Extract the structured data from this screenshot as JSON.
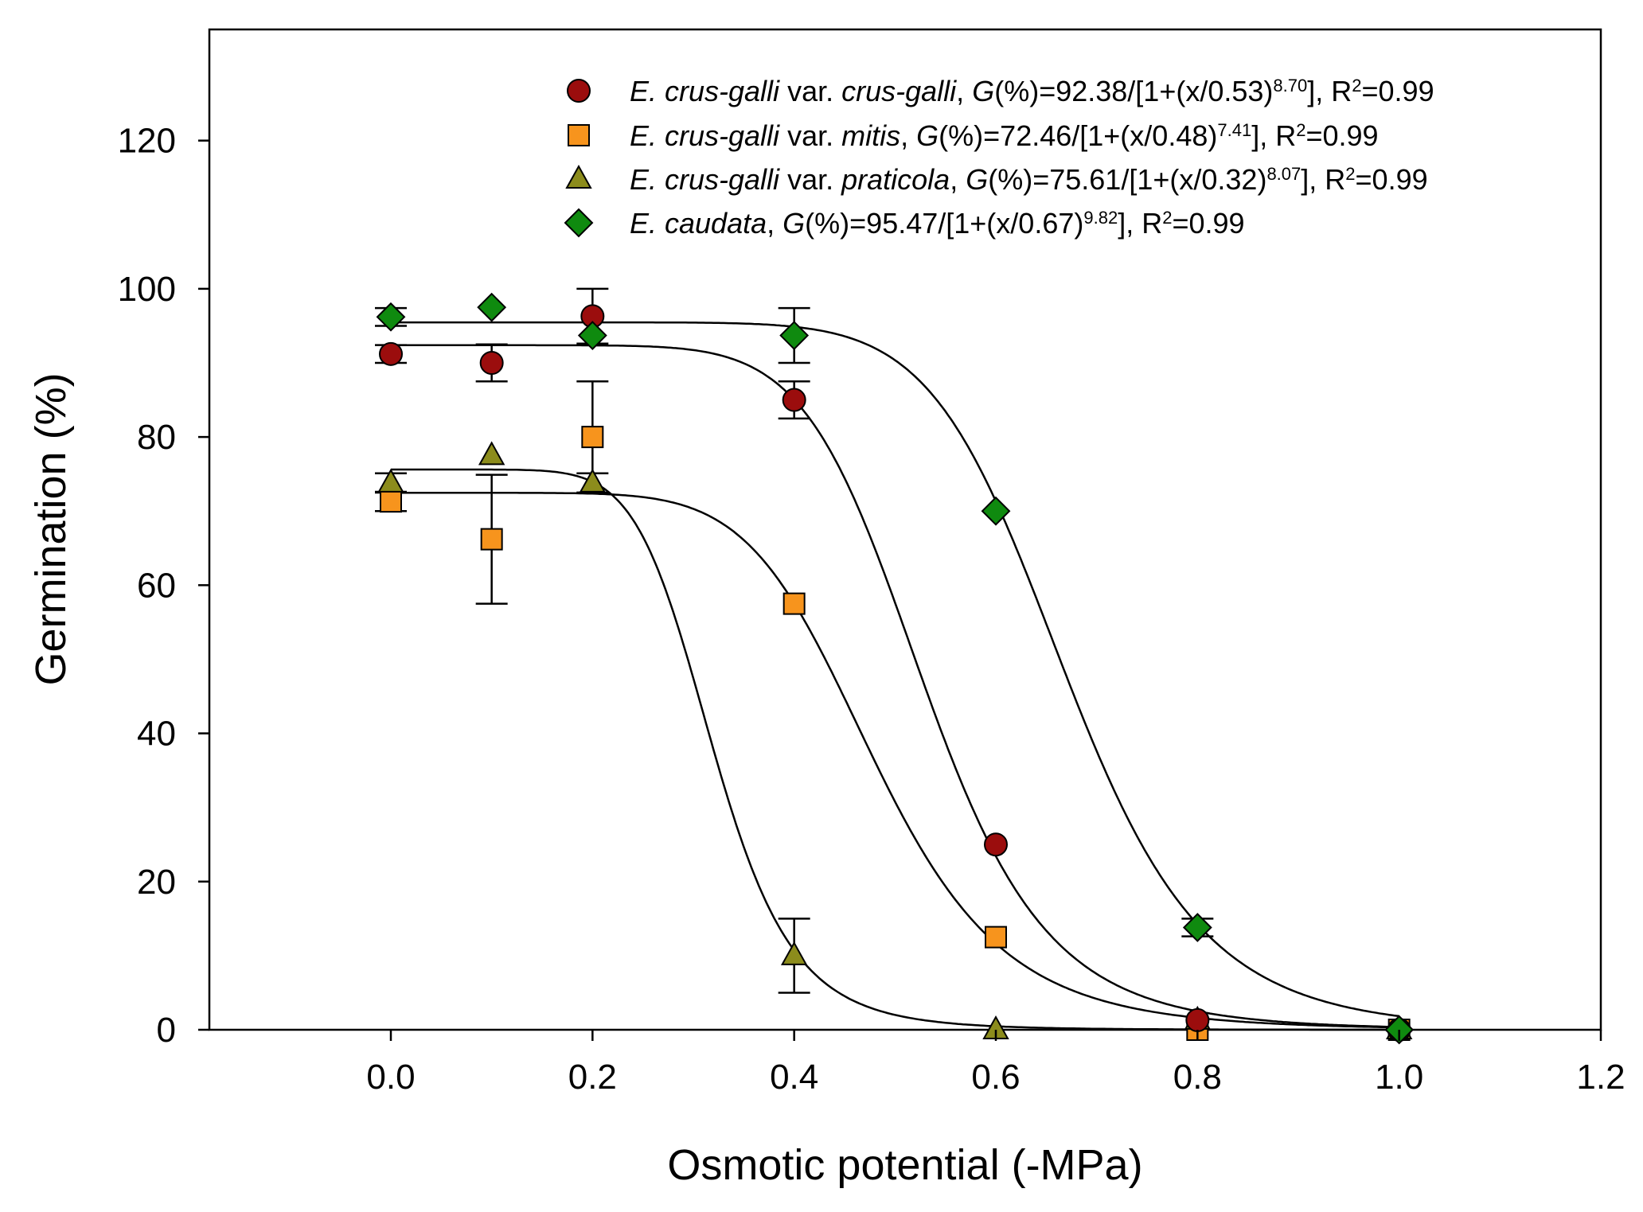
{
  "chart_data": {
    "type": "scatter",
    "xlabel": "Osmotic potential (-MPa)",
    "ylabel": "Germination (%)",
    "xlim": [
      -0.18,
      1.2
    ],
    "ylim": [
      0,
      135
    ],
    "x_ticks": [
      "0.0",
      "0.2",
      "0.4",
      "0.6",
      "0.8",
      "1.0",
      "1.2"
    ],
    "x_tick_values": [
      0,
      0.2,
      0.4,
      0.6,
      0.8,
      1.0,
      1.2
    ],
    "y_ticks": [
      "0",
      "20",
      "40",
      "60",
      "80",
      "100",
      "120"
    ],
    "y_tick_values": [
      0,
      20,
      40,
      60,
      80,
      100,
      120
    ],
    "grid": false,
    "legend_position": "top-right",
    "series": [
      {
        "name": "E. crus-galli var. crus-galli",
        "marker": "circle",
        "color": "#9B0D0D",
        "x": [
          0,
          0.1,
          0.2,
          0.4,
          0.6,
          0.8,
          1.0
        ],
        "y": [
          91.2,
          90,
          96.3,
          85,
          25,
          1.3,
          0
        ],
        "err": [
          1.2,
          2.5,
          3.7,
          2.5,
          0,
          0,
          0
        ],
        "fit": {
          "a": 92.38,
          "x0": 0.53,
          "b": 8.7
        },
        "legend": {
          "species": "E. crus-galli",
          "var_word": "var.",
          "variety": "crus-galli",
          "formula_pre": "(%)=92.38/[1+(x/0.53)",
          "exponent": "8.70",
          "formula_post": "], R",
          "r2_sup": "2",
          "r2_val": "=0.99"
        }
      },
      {
        "name": "E. crus-galli var. mitis",
        "marker": "square",
        "color": "#F7941D",
        "x": [
          0,
          0.1,
          0.2,
          0.4,
          0.6,
          0.8,
          1.0
        ],
        "y": [
          71.3,
          66.2,
          80,
          57.5,
          12.5,
          0,
          0
        ],
        "err": [
          1.3,
          8.7,
          7.5,
          0,
          0,
          0,
          0
        ],
        "fit": {
          "a": 72.46,
          "x0": 0.48,
          "b": 7.41
        },
        "legend": {
          "species": "E. crus-galli",
          "var_word": "var.",
          "variety": "mitis",
          "formula_pre": "(%)=72.46/[1+(x/0.48)",
          "exponent": "7.41",
          "formula_post": "], R",
          "r2_sup": "2",
          "r2_val": "=0.99"
        }
      },
      {
        "name": "E. crus-galli var. praticola",
        "marker": "triangle",
        "color": "#8C8C1C",
        "x": [
          0,
          0.1,
          0.2,
          0.4,
          0.6,
          0.8,
          1.0
        ],
        "y": [
          73.8,
          77.5,
          73.8,
          10,
          0,
          1.3,
          0
        ],
        "err": [
          1.3,
          0,
          1.3,
          5,
          0,
          0,
          0
        ],
        "fit": {
          "a": 75.61,
          "x0": 0.32,
          "b": 8.07
        },
        "legend": {
          "species": "E. crus-galli",
          "var_word": "var.",
          "variety": "praticola",
          "formula_pre": "(%)=75.61/[1+(x/0.32)",
          "exponent": "8.07",
          "formula_post": "], R",
          "r2_sup": "2",
          "r2_val": "=0.99"
        }
      },
      {
        "name": "E. caudata",
        "marker": "diamond",
        "color": "#0F8A0F",
        "x": [
          0,
          0.1,
          0.2,
          0.4,
          0.6,
          0.8,
          1.0
        ],
        "y": [
          96.2,
          97.5,
          93.7,
          93.7,
          70,
          13.8,
          0
        ],
        "err": [
          1.2,
          0,
          0,
          3.7,
          0,
          1.2,
          0
        ],
        "fit": {
          "a": 95.47,
          "x0": 0.67,
          "b": 9.82
        },
        "legend": {
          "species": "E. caudata",
          "var_word": "",
          "variety": "",
          "formula_pre": "(%)=95.47/[1+(x/0.67)",
          "exponent": "9.82",
          "formula_post": "], R",
          "r2_sup": "2",
          "r2_val": "=0.99"
        }
      }
    ]
  }
}
